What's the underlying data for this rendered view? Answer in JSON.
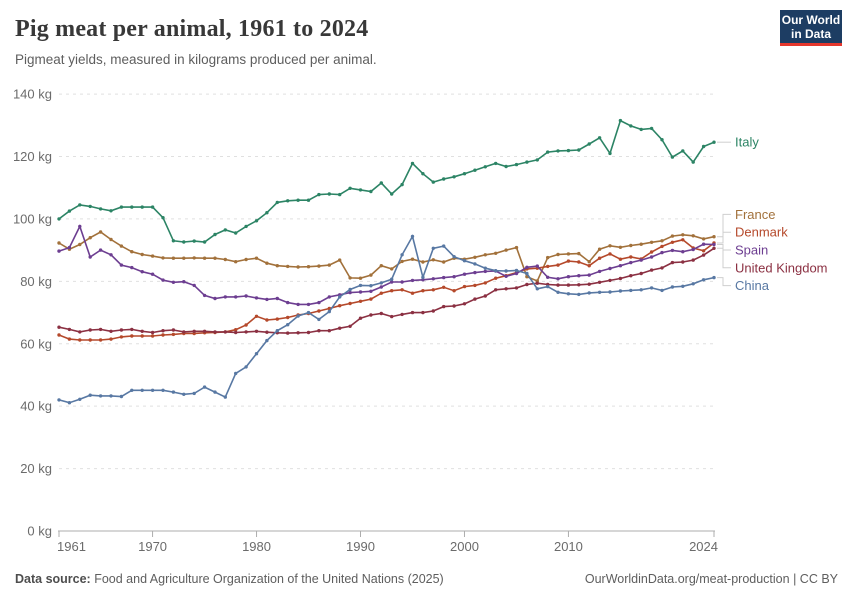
{
  "header": {
    "title": "Pig meat per animal, 1961 to 2024",
    "subtitle": "Pigmeat yields, measured in kilograms produced per animal."
  },
  "logo": {
    "line1": "Our World",
    "line2": "in Data",
    "bg_color": "#1d3d63",
    "accent_color": "#e5372d"
  },
  "footer": {
    "source_label": "Data source:",
    "source_text": " Food and Agriculture Organization of the United Nations (2025)",
    "link_text": "OurWorldinData.org/meat-production",
    "separator": " | ",
    "license_text": "CC BY"
  },
  "chart_data": {
    "type": "line",
    "unit": "kg",
    "ylim": [
      0,
      140
    ],
    "xlim": [
      1961,
      2024
    ],
    "grid": "horizontal-dashed",
    "legend_position": "right",
    "y_ticks": [
      0,
      20,
      40,
      60,
      80,
      100,
      120,
      140
    ],
    "y_tick_suffix": " kg",
    "x_ticks": [
      1961,
      1970,
      1980,
      1990,
      2000,
      2010,
      2024
    ],
    "x": [
      1961,
      1962,
      1963,
      1964,
      1965,
      1966,
      1967,
      1968,
      1969,
      1970,
      1971,
      1972,
      1973,
      1974,
      1975,
      1976,
      1977,
      1978,
      1979,
      1980,
      1981,
      1982,
      1983,
      1984,
      1985,
      1986,
      1987,
      1988,
      1989,
      1990,
      1991,
      1992,
      1993,
      1994,
      1995,
      1996,
      1997,
      1998,
      1999,
      2000,
      2001,
      2002,
      2003,
      2004,
      2005,
      2006,
      2007,
      2008,
      2009,
      2010,
      2011,
      2012,
      2013,
      2014,
      2015,
      2016,
      2017,
      2018,
      2019,
      2020,
      2021,
      2022,
      2023,
      2024
    ],
    "series": [
      {
        "name": "Italy",
        "color": "#2C8465",
        "values": [
          100.0,
          102.5,
          104.5,
          104.0,
          103.2,
          102.6,
          103.8,
          103.8,
          103.8,
          103.8,
          100.4,
          93.0,
          92.6,
          92.9,
          92.6,
          95.0,
          96.5,
          95.5,
          97.6,
          99.4,
          102.0,
          105.3,
          105.8,
          106.0,
          106.0,
          107.8,
          108.0,
          107.8,
          109.8,
          109.3,
          108.8,
          111.5,
          108.0,
          111.0,
          117.8,
          114.5,
          111.8,
          112.8,
          113.5,
          114.5,
          115.6,
          116.7,
          117.8,
          116.8,
          117.4,
          118.2,
          118.9,
          121.4,
          121.8,
          121.9,
          122.1,
          124.0,
          126.0,
          121.0,
          131.5,
          129.8,
          128.7,
          129.0,
          125.4,
          119.8,
          121.8,
          118.2,
          123.2,
          124.6
        ]
      },
      {
        "name": "France",
        "color": "#A2713B",
        "values": [
          92.3,
          90.3,
          91.8,
          94.0,
          95.8,
          93.4,
          91.3,
          89.5,
          88.6,
          88.1,
          87.5,
          87.4,
          87.4,
          87.5,
          87.4,
          87.4,
          87.0,
          86.3,
          87.0,
          87.4,
          85.8,
          85.0,
          84.8,
          84.6,
          84.7,
          84.9,
          85.2,
          86.8,
          81.1,
          81.0,
          82.0,
          85.0,
          84.0,
          86.4,
          87.1,
          86.2,
          86.9,
          86.2,
          87.4,
          87.1,
          87.7,
          88.5,
          89.0,
          90.0,
          90.8,
          81.5,
          80.1,
          87.6,
          88.6,
          88.8,
          88.9,
          86.3,
          90.3,
          91.4,
          90.9,
          91.5,
          91.9,
          92.5,
          93.0,
          94.5,
          94.9,
          94.6,
          93.6,
          94.3
        ]
      },
      {
        "name": "Denmark",
        "color": "#B5492B",
        "values": [
          62.8,
          61.5,
          61.2,
          61.2,
          61.2,
          61.5,
          62.2,
          62.5,
          62.5,
          62.5,
          62.8,
          63.0,
          63.3,
          63.3,
          63.5,
          63.6,
          63.8,
          64.5,
          66.0,
          68.8,
          67.6,
          67.9,
          68.4,
          69.2,
          69.7,
          70.5,
          71.3,
          72.2,
          72.9,
          73.6,
          74.3,
          76.2,
          77.0,
          77.3,
          76.2,
          77.0,
          77.3,
          78.1,
          77.0,
          78.3,
          78.7,
          79.5,
          81.0,
          81.8,
          82.8,
          84.0,
          84.2,
          84.8,
          85.2,
          86.5,
          86.2,
          85.0,
          87.4,
          88.8,
          87.1,
          87.8,
          87.2,
          89.4,
          91.2,
          92.5,
          93.3,
          90.7,
          89.8,
          92.3
        ]
      },
      {
        "name": "Spain",
        "color": "#6D3E91",
        "values": [
          89.7,
          90.8,
          97.6,
          87.8,
          90.0,
          88.5,
          85.2,
          84.4,
          83.1,
          82.3,
          80.4,
          79.7,
          79.9,
          78.7,
          75.5,
          74.5,
          75.0,
          75.0,
          75.3,
          74.7,
          74.2,
          74.5,
          73.2,
          72.6,
          72.6,
          73.2,
          75.0,
          75.7,
          76.4,
          76.6,
          76.8,
          78.2,
          79.8,
          79.8,
          80.3,
          80.5,
          80.8,
          81.2,
          81.5,
          82.3,
          82.8,
          83.2,
          83.3,
          81.6,
          82.5,
          84.5,
          84.9,
          81.3,
          80.8,
          81.5,
          81.8,
          82.0,
          83.2,
          84.1,
          85.0,
          86.0,
          86.8,
          87.8,
          89.2,
          89.9,
          89.5,
          90.2,
          91.9,
          91.8
        ]
      },
      {
        "name": "United Kingdom",
        "color": "#8B3042",
        "values": [
          65.3,
          64.6,
          63.8,
          64.4,
          64.6,
          64.0,
          64.4,
          64.6,
          64.0,
          63.6,
          64.2,
          64.4,
          63.8,
          64.0,
          64.0,
          63.8,
          63.8,
          63.6,
          63.8,
          64.0,
          63.7,
          63.5,
          63.4,
          63.5,
          63.6,
          64.2,
          64.2,
          65.0,
          65.6,
          68.2,
          69.2,
          69.7,
          68.7,
          69.4,
          70.0,
          70.0,
          70.5,
          71.9,
          72.1,
          72.8,
          74.3,
          75.3,
          77.3,
          77.6,
          77.9,
          79.0,
          79.4,
          79.0,
          78.8,
          78.8,
          78.9,
          79.1,
          79.7,
          80.3,
          80.9,
          81.8,
          82.5,
          83.6,
          84.3,
          86.0,
          86.2,
          86.8,
          88.4,
          90.6
        ]
      },
      {
        "name": "China",
        "color": "#5878A3",
        "values": [
          42.0,
          41.1,
          42.2,
          43.5,
          43.3,
          43.3,
          43.1,
          45.1,
          45.1,
          45.1,
          45.1,
          44.5,
          43.8,
          44.1,
          46.1,
          44.5,
          42.9,
          50.5,
          52.6,
          56.8,
          61.0,
          64.2,
          66.1,
          68.9,
          70.0,
          67.8,
          70.3,
          75.0,
          77.4,
          78.7,
          78.6,
          79.5,
          80.7,
          88.5,
          94.4,
          81.3,
          90.6,
          91.3,
          87.9,
          86.6,
          85.6,
          84.2,
          83.4,
          83.3,
          83.5,
          82.5,
          77.6,
          78.3,
          76.5,
          76.0,
          75.8,
          76.3,
          76.5,
          76.6,
          76.9,
          77.1,
          77.3,
          77.9,
          77.1,
          78.2,
          78.4,
          79.2,
          80.5,
          81.2
        ]
      }
    ]
  }
}
